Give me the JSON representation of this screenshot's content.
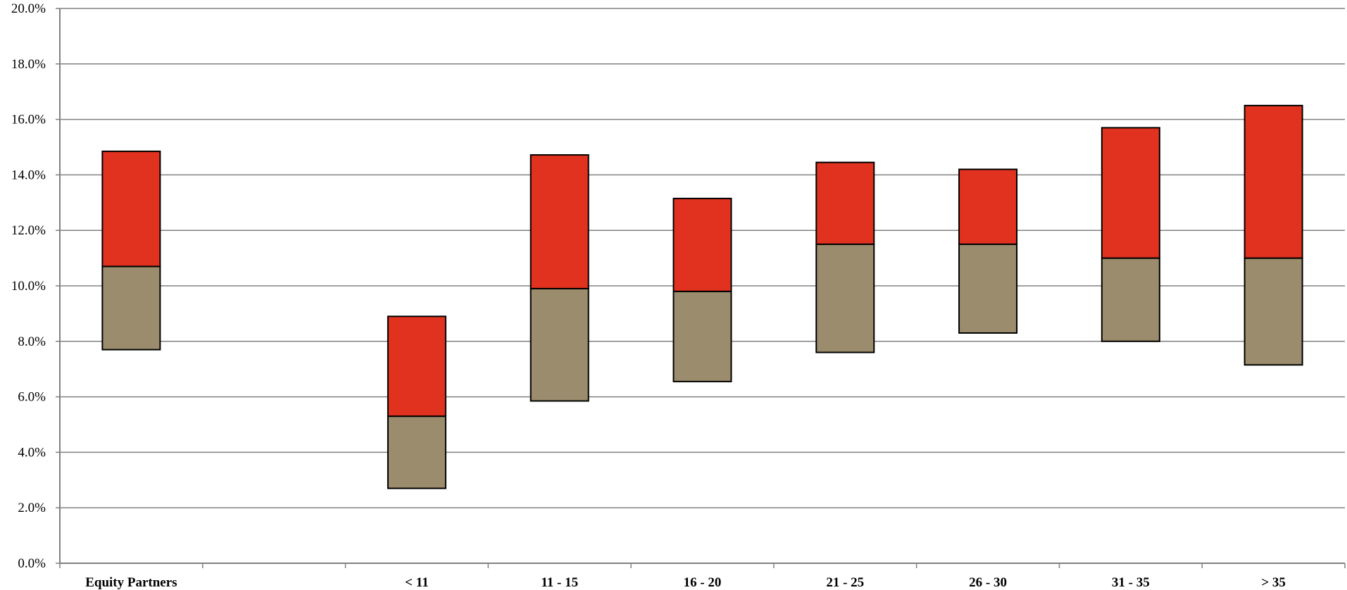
{
  "chart_data": {
    "type": "bar",
    "stacked": true,
    "floating": true,
    "categories": [
      "Equity Partners",
      "",
      "< 11",
      "11 - 15",
      "16 - 20",
      "21 - 25",
      "26 - 30",
      "31 - 35",
      "> 35"
    ],
    "ranges": [
      {
        "low": 7.7,
        "mid": 10.7,
        "high": 14.85
      },
      null,
      {
        "low": 2.7,
        "mid": 5.3,
        "high": 8.9
      },
      {
        "low": 5.85,
        "mid": 9.9,
        "high": 14.72
      },
      {
        "low": 6.55,
        "mid": 9.8,
        "high": 13.15
      },
      {
        "low": 7.6,
        "mid": 11.5,
        "high": 14.45
      },
      {
        "low": 8.3,
        "mid": 11.5,
        "high": 14.2
      },
      {
        "low": 8.0,
        "mid": 11.0,
        "high": 15.7
      },
      {
        "low": 7.15,
        "mid": 11.0,
        "high": 16.5
      }
    ],
    "ylim": [
      0,
      20
    ],
    "yticks": [
      "0.0%",
      "2.0%",
      "4.0%",
      "6.0%",
      "8.0%",
      "10.0%",
      "12.0%",
      "14.0%",
      "16.0%",
      "18.0%",
      "20.0%"
    ],
    "grid": true,
    "colors": {
      "lower": "#9a8c6c",
      "upper": "#e0321e",
      "grid": "#808080",
      "axis": "#808080",
      "border": "#000000"
    }
  }
}
